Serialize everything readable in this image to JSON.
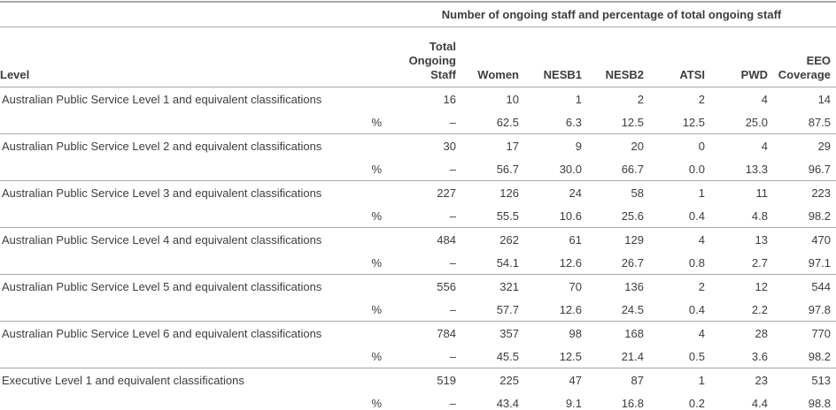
{
  "table": {
    "spanner": "Number of ongoing staff and percentage of total ongoing staff",
    "percent_row_label": "%",
    "columns": [
      {
        "key": "level",
        "label": "Level"
      },
      {
        "key": "total_ongoing_staff",
        "label": "Total\nOngoing\nStaff"
      },
      {
        "key": "women",
        "label": "Women"
      },
      {
        "key": "nesb1",
        "label": "NESB1"
      },
      {
        "key": "nesb2",
        "label": "NESB2"
      },
      {
        "key": "atsi",
        "label": "ATSI"
      },
      {
        "key": "pwd",
        "label": "PWD"
      },
      {
        "key": "eeo_coverage",
        "label": "EEO\nCoverage"
      }
    ],
    "groups": [
      {
        "level": "Australian Public Service Level 1 and equivalent classifications",
        "counts": [
          "16",
          "10",
          "1",
          "2",
          "2",
          "4",
          "14"
        ],
        "percents": [
          "–",
          "62.5",
          "6.3",
          "12.5",
          "12.5",
          "25.0",
          "87.5"
        ]
      },
      {
        "level": "Australian Public Service Level 2 and equivalent classifications",
        "counts": [
          "30",
          "17",
          "9",
          "20",
          "0",
          "4",
          "29"
        ],
        "percents": [
          "–",
          "56.7",
          "30.0",
          "66.7",
          "0.0",
          "13.3",
          "96.7"
        ]
      },
      {
        "level": "Australian Public Service Level 3 and equivalent classifications",
        "counts": [
          "227",
          "126",
          "24",
          "58",
          "1",
          "11",
          "223"
        ],
        "percents": [
          "–",
          "55.5",
          "10.6",
          "25.6",
          "0.4",
          "4.8",
          "98.2"
        ]
      },
      {
        "level": "Australian Public Service Level 4 and equivalent classifications",
        "counts": [
          "484",
          "262",
          "61",
          "129",
          "4",
          "13",
          "470"
        ],
        "percents": [
          "–",
          "54.1",
          "12.6",
          "26.7",
          "0.8",
          "2.7",
          "97.1"
        ]
      },
      {
        "level": "Australian Public Service Level 5 and equivalent classifications",
        "counts": [
          "556",
          "321",
          "70",
          "136",
          "2",
          "12",
          "544"
        ],
        "percents": [
          "–",
          "57.7",
          "12.6",
          "24.5",
          "0.4",
          "2.2",
          "97.8"
        ]
      },
      {
        "level": "Australian Public Service Level 6 and equivalent classifications",
        "counts": [
          "784",
          "357",
          "98",
          "168",
          "4",
          "28",
          "770"
        ],
        "percents": [
          "–",
          "45.5",
          "12.5",
          "21.4",
          "0.5",
          "3.6",
          "98.2"
        ]
      },
      {
        "level": "Executive Level 1 and equivalent classifications",
        "counts": [
          "519",
          "225",
          "47",
          "87",
          "1",
          "23",
          "513"
        ],
        "percents": [
          "–",
          "43.4",
          "9.1",
          "16.8",
          "0.2",
          "4.4",
          "98.8"
        ]
      }
    ],
    "colors": {
      "text": "#3d3d3d",
      "rule": "#a8a8a8",
      "background": "#ffffff"
    }
  }
}
